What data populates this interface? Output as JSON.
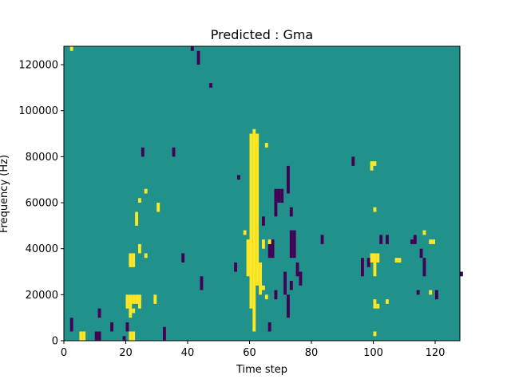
{
  "chart_data": {
    "type": "heatmap",
    "title": "Predicted : Gma",
    "xlabel": "Time step",
    "ylabel": "Frequency (Hz)",
    "xlim": [
      0,
      128
    ],
    "ylim": [
      0,
      128000
    ],
    "x_ticks": [
      0,
      20,
      40,
      60,
      80,
      100,
      120
    ],
    "y_ticks": [
      0,
      20000,
      40000,
      60000,
      80000,
      100000,
      120000
    ],
    "y_tick_labels": [
      "0",
      "20000",
      "40000",
      "60000",
      "80000",
      "100000",
      "120000"
    ],
    "grid": false,
    "legend": "none",
    "n_time_steps": 128,
    "n_freq_bins": 64,
    "bin_height_hz": 2000,
    "colors": {
      "background": "#21918c",
      "high": "#fde725",
      "low": "#440154"
    },
    "rows_info": "cell values: 0 = low (purple), 1 = mid (teal), 2 = high (yellow); listed as [time_step, freq_bin_start_hz, freq_bin_end_hz]",
    "high_cells": [
      [
        2,
        126000,
        128000
      ],
      [
        5,
        0,
        4000
      ],
      [
        6,
        0,
        4000
      ],
      [
        21,
        0,
        4000
      ],
      [
        22,
        0,
        4000
      ],
      [
        21,
        10000,
        14000
      ],
      [
        22,
        12000,
        14000
      ],
      [
        24,
        14000,
        16000
      ],
      [
        29,
        16000,
        20000
      ],
      [
        20,
        14000,
        20000
      ],
      [
        21,
        14000,
        20000
      ],
      [
        22,
        16000,
        20000
      ],
      [
        23,
        16000,
        20000
      ],
      [
        24,
        16000,
        20000
      ],
      [
        21,
        32000,
        38000
      ],
      [
        22,
        32000,
        38000
      ],
      [
        24,
        38000,
        42000
      ],
      [
        26,
        36000,
        38000
      ],
      [
        23,
        50000,
        56000
      ],
      [
        24,
        60000,
        62000
      ],
      [
        26,
        64000,
        66000
      ],
      [
        30,
        56000,
        60000
      ],
      [
        60,
        14000,
        90000
      ],
      [
        61,
        4000,
        92000
      ],
      [
        62,
        24000,
        90000
      ],
      [
        63,
        20000,
        34000
      ],
      [
        64,
        22000,
        24000
      ],
      [
        62,
        84000,
        90000
      ],
      [
        58,
        46000,
        48000
      ],
      [
        59,
        28000,
        44000
      ],
      [
        65,
        18000,
        20000
      ],
      [
        64,
        40000,
        44000
      ],
      [
        66,
        42000,
        44000
      ],
      [
        65,
        84000,
        86000
      ],
      [
        99,
        74000,
        78000
      ],
      [
        100,
        76000,
        78000
      ],
      [
        100,
        56000,
        58000
      ],
      [
        99,
        34000,
        38000
      ],
      [
        100,
        28000,
        38000
      ],
      [
        101,
        34000,
        38000
      ],
      [
        107,
        34000,
        36000
      ],
      [
        108,
        34000,
        36000
      ],
      [
        100,
        14000,
        18000
      ],
      [
        101,
        14000,
        16000
      ],
      [
        100,
        2000,
        4000
      ],
      [
        104,
        16000,
        18000
      ],
      [
        118,
        20000,
        22000
      ],
      [
        118,
        42000,
        44000
      ],
      [
        116,
        46000,
        48000
      ],
      [
        119,
        42000,
        44000
      ]
    ],
    "low_cells": [
      [
        2,
        4000,
        10000
      ],
      [
        10,
        0,
        4000
      ],
      [
        11,
        0,
        4000
      ],
      [
        11,
        10000,
        14000
      ],
      [
        15,
        4000,
        8000
      ],
      [
        19,
        0,
        2000
      ],
      [
        32,
        0,
        6000
      ],
      [
        38,
        34000,
        38000
      ],
      [
        44,
        22000,
        28000
      ],
      [
        55,
        30000,
        34000
      ],
      [
        66,
        36000,
        42000
      ],
      [
        67,
        36000,
        44000
      ],
      [
        68,
        54000,
        66000
      ],
      [
        69,
        60000,
        66000
      ],
      [
        70,
        60000,
        66000
      ],
      [
        72,
        10000,
        20000
      ],
      [
        73,
        22000,
        26000
      ],
      [
        73,
        36000,
        48000
      ],
      [
        74,
        36000,
        48000
      ],
      [
        75,
        28000,
        34000
      ],
      [
        76,
        24000,
        30000
      ],
      [
        71,
        20000,
        30000
      ],
      [
        72,
        64000,
        76000
      ],
      [
        73,
        54000,
        58000
      ],
      [
        68,
        18000,
        22000
      ],
      [
        66,
        4000,
        8000
      ],
      [
        62,
        48000,
        54000
      ],
      [
        64,
        50000,
        54000
      ],
      [
        41,
        126000,
        128000
      ],
      [
        43,
        120000,
        126000
      ],
      [
        47,
        110000,
        112000
      ],
      [
        96,
        28000,
        36000
      ],
      [
        98,
        32000,
        36000
      ],
      [
        102,
        42000,
        46000
      ],
      [
        112,
        42000,
        44000
      ],
      [
        113,
        42000,
        46000
      ],
      [
        115,
        36000,
        40000
      ],
      [
        116,
        28000,
        36000
      ],
      [
        120,
        18000,
        22000
      ],
      [
        128,
        28000,
        30000
      ],
      [
        20,
        4000,
        8000
      ],
      [
        25,
        80000,
        84000
      ],
      [
        35,
        80000,
        84000
      ],
      [
        56,
        70000,
        72000
      ],
      [
        83,
        42000,
        46000
      ],
      [
        93,
        76000,
        80000
      ],
      [
        104,
        42000,
        46000
      ],
      [
        114,
        20000,
        22000
      ]
    ]
  }
}
